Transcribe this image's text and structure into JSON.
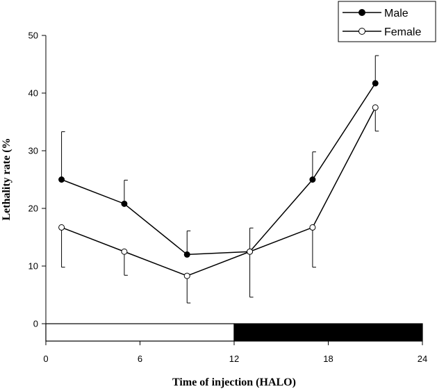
{
  "chart_data": {
    "type": "line",
    "title": "",
    "xlabel": "Time of injection (HALO)",
    "ylabel": "Lethality rate (%",
    "xlim": [
      0,
      24
    ],
    "ylim": [
      0,
      50
    ],
    "x_ticks": [
      "0",
      "6",
      "12",
      "18",
      "24"
    ],
    "y_ticks": [
      "0",
      "10",
      "20",
      "30",
      "40",
      "50"
    ],
    "grid": false,
    "legend_position": "top-right",
    "light_dark_bar": {
      "light": [
        0,
        12
      ],
      "dark": [
        12,
        24
      ]
    },
    "series": [
      {
        "name": "Male",
        "marker": "filled-circle",
        "x": [
          1,
          5,
          9,
          13,
          17,
          21
        ],
        "y": [
          25.0,
          20.8,
          12.0,
          12.5,
          25.0,
          41.7
        ],
        "error_upper": [
          33.3,
          24.9,
          16.1,
          16.6,
          29.8,
          46.5
        ]
      },
      {
        "name": "Female",
        "marker": "open-circle",
        "x": [
          1,
          5,
          9,
          13,
          17,
          21
        ],
        "y": [
          16.7,
          12.5,
          8.3,
          12.5,
          16.7,
          37.5
        ],
        "error_lower": [
          9.8,
          8.4,
          3.6,
          4.6,
          9.8,
          33.4
        ]
      }
    ]
  }
}
